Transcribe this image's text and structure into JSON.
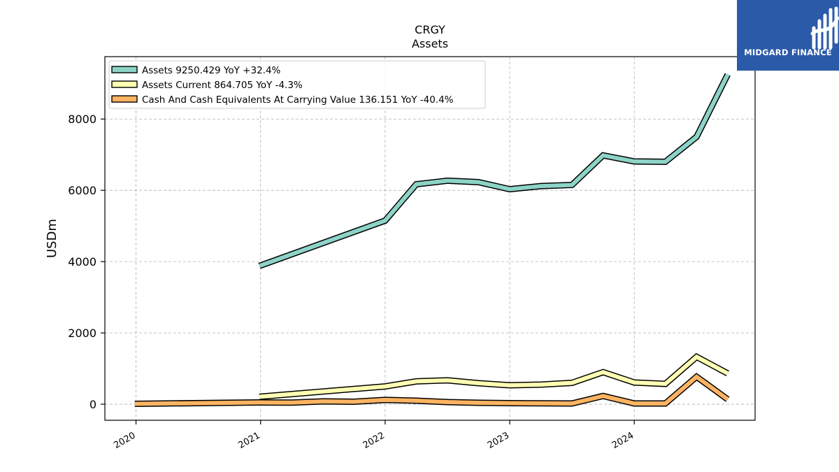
{
  "logo": {
    "text": "MIDGARD FINANCE"
  },
  "chart_data": {
    "type": "line",
    "title": "CRGY",
    "subtitle": "Assets",
    "xlabel": "",
    "ylabel": "USDm",
    "xlim": [
      2019.75,
      2024.97
    ],
    "ylim": [
      -450,
      9750
    ],
    "x_ticks": [
      2020,
      2021,
      2022,
      2023,
      2024
    ],
    "x_tick_labels": [
      "2020",
      "2021",
      "2022",
      "2023",
      "2024"
    ],
    "y_ticks": [
      0,
      2000,
      4000,
      6000,
      8000
    ],
    "y_tick_labels": [
      "0",
      "2000",
      "4000",
      "6000",
      "8000"
    ],
    "grid": true,
    "legend_position": "top-left",
    "series": [
      {
        "name": "Assets  9250.429 YoY +32.4%",
        "color": "#8dd3c7",
        "x": [
          2020.99,
          2022.0,
          2022.25,
          2022.5,
          2022.75,
          2023.0,
          2023.25,
          2023.5,
          2023.75,
          2024.0,
          2024.25,
          2024.5,
          2024.75
        ],
        "values": [
          3880,
          5150,
          6170,
          6270,
          6230,
          6030,
          6120,
          6150,
          6980,
          6810,
          6800,
          7500,
          9250
        ]
      },
      {
        "name": "Assets Current  864.705 YoY -4.3%",
        "color": "#ffffb3",
        "x": [
          2020.99,
          2022.0,
          2022.25,
          2022.5,
          2022.75,
          2023.0,
          2023.25,
          2023.5,
          2023.75,
          2024.0,
          2024.25,
          2024.5,
          2024.75
        ],
        "values": [
          210,
          500,
          640,
          670,
          590,
          530,
          550,
          600,
          900,
          610,
          570,
          1330,
          865
        ]
      },
      {
        "name": "Cash And Cash Equivalents At Carrying Value  136.151 YoY -40.4%",
        "color": "#fdb462",
        "x": [
          2019.99,
          2020.99,
          2021.25,
          2021.5,
          2021.75,
          2022.0,
          2022.25,
          2022.5,
          2022.75,
          2023.0,
          2023.25,
          2023.5,
          2023.75,
          2024.0,
          2024.25,
          2024.5,
          2024.75
        ],
        "values": [
          10,
          50,
          45,
          80,
          70,
          120,
          100,
          60,
          40,
          30,
          25,
          20,
          230,
          20,
          20,
          770,
          136
        ]
      }
    ]
  }
}
